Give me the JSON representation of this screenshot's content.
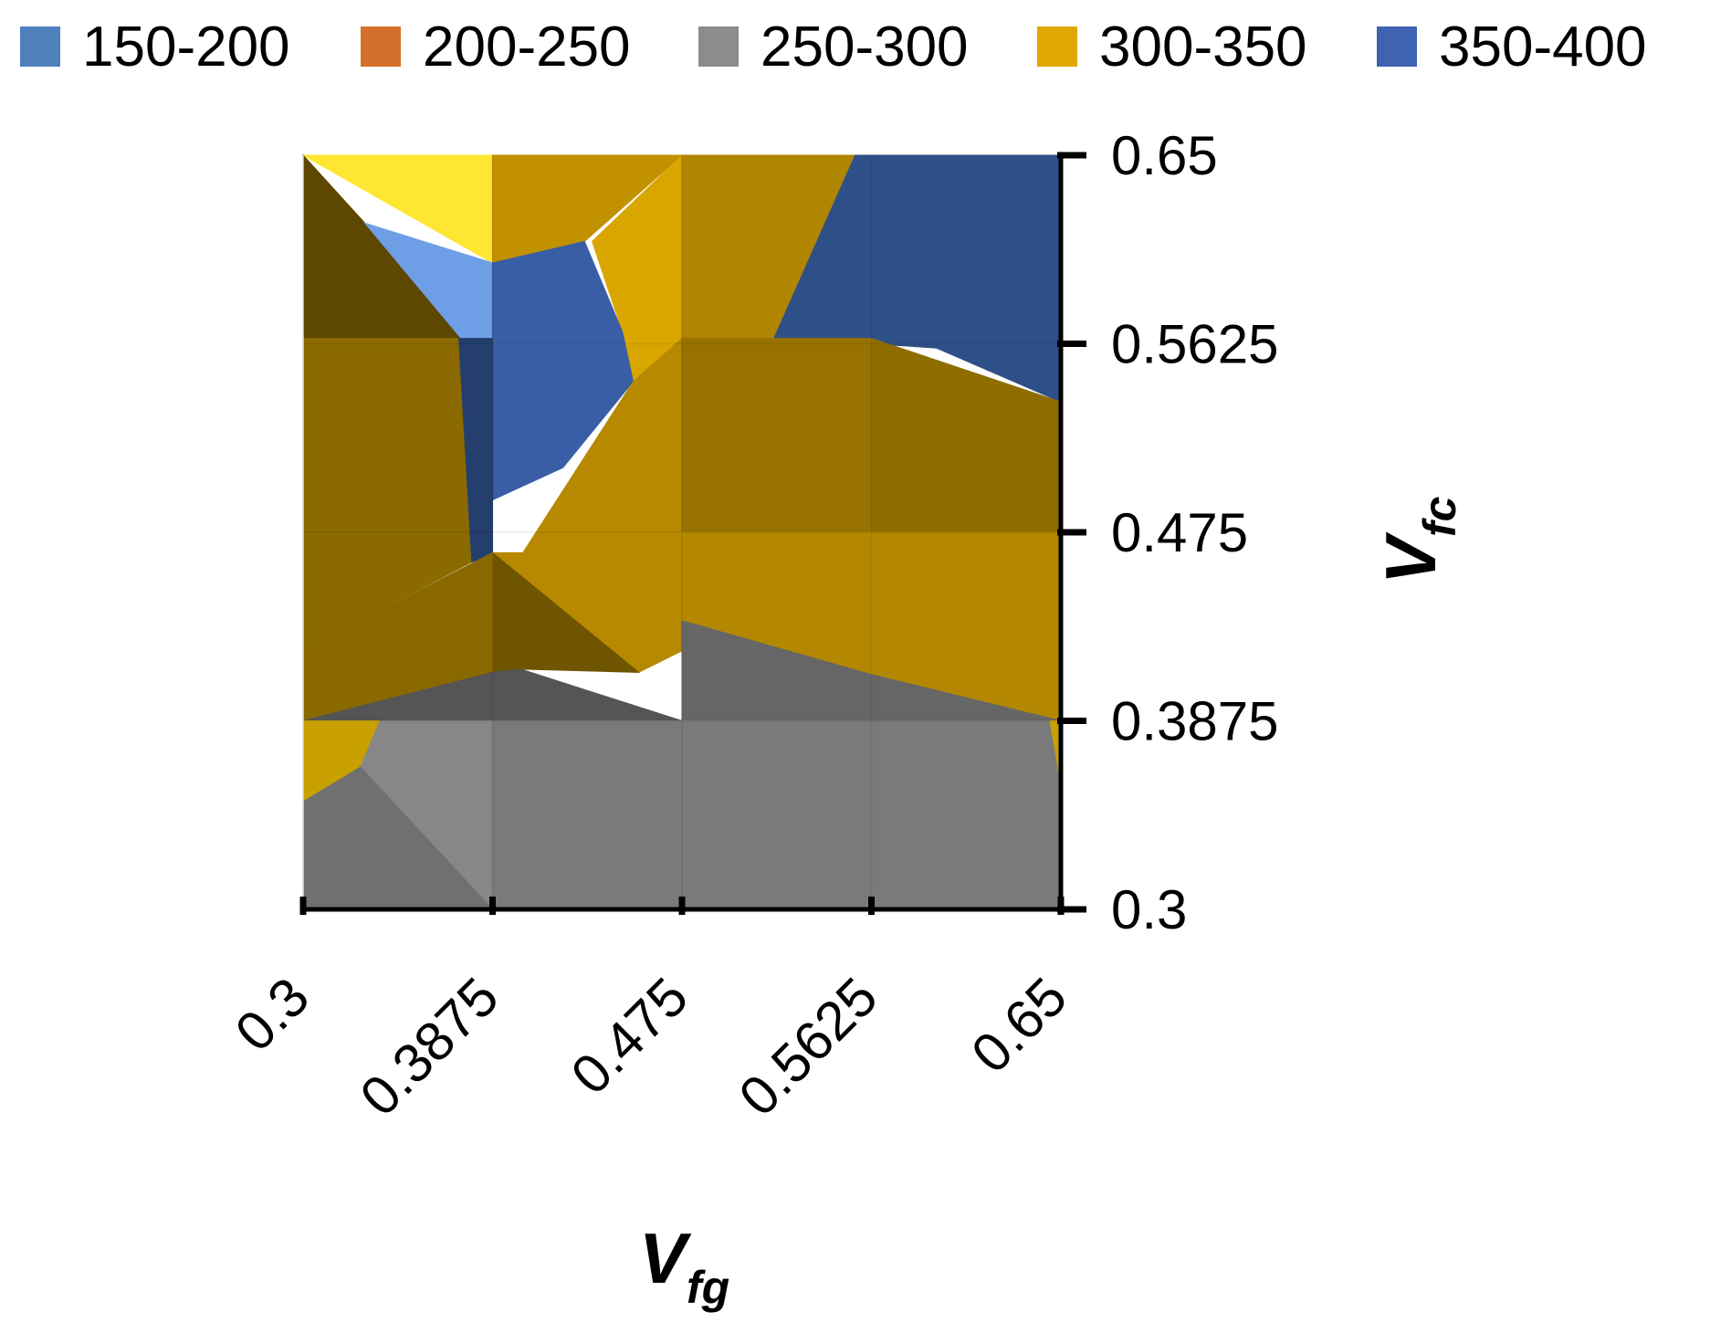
{
  "chart_data": {
    "type": "area",
    "subtype": "3d-surface-contour-top-view",
    "legend_position": "top",
    "bands": [
      {
        "label": "150-200",
        "color": "#4f81bd"
      },
      {
        "label": "200-250",
        "color": "#d4702c"
      },
      {
        "label": "250-300",
        "color": "#8c8c8c"
      },
      {
        "label": "300-350",
        "color": "#e0a800"
      },
      {
        "label": "350-400",
        "color": "#3f62b1"
      }
    ],
    "x_axis": {
      "title_main": "V",
      "title_sub": "fg",
      "ticks": [
        "0.3",
        "0.3875",
        "0.475",
        "0.5625",
        "0.65"
      ],
      "range": [
        0.3,
        0.65
      ]
    },
    "y_axis": {
      "title_main": "V",
      "title_sub": "fc",
      "ticks": [
        "0.3",
        "0.3875",
        "0.475",
        "0.5625",
        "0.65"
      ],
      "range": [
        0.3,
        0.65
      ],
      "side": "right"
    },
    "x_values": [
      0.3,
      0.3875,
      0.475,
      0.5625,
      0.65
    ],
    "y_values": [
      0.3,
      0.3875,
      0.475,
      0.5625,
      0.65
    ],
    "z_band_grid_rows_top_to_bottom": [
      [
        "300-350",
        "300-350",
        "300-350",
        "350-400",
        "350-400"
      ],
      [
        "300-350",
        "350-400",
        "300-350",
        "300-350",
        "350-400"
      ],
      [
        "300-350",
        "350-400",
        "300-350",
        "300-350",
        "300-350"
      ],
      [
        "300-350",
        "300-350",
        "250-300",
        "250-300",
        "300-350"
      ],
      [
        "250-300",
        "250-300",
        "250-300",
        "250-300",
        "250-300"
      ]
    ],
    "regions": [
      {
        "band": "300-350",
        "color": "#ffe633",
        "points": [
          [
            0.3,
            0.65
          ],
          [
            0.3875,
            0.65
          ],
          [
            0.3875,
            0.6
          ]
        ]
      },
      {
        "band": "300-350",
        "color": "#c29100",
        "points": [
          [
            0.3875,
            0.65
          ],
          [
            0.475,
            0.65
          ],
          [
            0.43,
            0.61
          ],
          [
            0.3875,
            0.6
          ]
        ]
      },
      {
        "band": "300-350",
        "color": "#d9a600",
        "points": [
          [
            0.475,
            0.65
          ],
          [
            0.475,
            0.565
          ],
          [
            0.4525,
            0.545
          ],
          [
            0.4475,
            0.568
          ],
          [
            0.4335,
            0.61
          ]
        ]
      },
      {
        "band": "300-350",
        "color": "#b08500",
        "points": [
          [
            0.475,
            0.65
          ],
          [
            0.555,
            0.65
          ],
          [
            0.5175,
            0.565
          ],
          [
            0.475,
            0.565
          ]
        ]
      },
      {
        "band": "350-400",
        "color": "#2e4f87",
        "points": [
          [
            0.555,
            0.65
          ],
          [
            0.65,
            0.65
          ],
          [
            0.65,
            0.5355
          ],
          [
            0.5925,
            0.5605
          ],
          [
            0.578,
            0.5615
          ],
          [
            0.5175,
            0.565
          ]
        ]
      },
      {
        "band": "300-350",
        "color": "#5e4700",
        "points": [
          [
            0.3,
            0.65
          ],
          [
            0.3285,
            0.6185
          ],
          [
            0.373,
            0.565
          ],
          [
            0.3,
            0.565
          ]
        ]
      },
      {
        "band": "150-200",
        "color": "#6e9ee6",
        "points": [
          [
            0.3285,
            0.6185
          ],
          [
            0.3875,
            0.6
          ],
          [
            0.3875,
            0.565
          ],
          [
            0.373,
            0.565
          ]
        ]
      },
      {
        "band": "350-400",
        "color": "#3a5ea5",
        "points": [
          [
            0.3875,
            0.6
          ],
          [
            0.43,
            0.61
          ],
          [
            0.4475,
            0.568
          ],
          [
            0.4525,
            0.545
          ],
          [
            0.42,
            0.505
          ],
          [
            0.3875,
            0.49
          ]
        ]
      },
      {
        "band": "350-400",
        "color": "#243e6e",
        "points": [
          [
            0.3875,
            0.565
          ],
          [
            0.3875,
            0.465
          ],
          [
            0.3775,
            0.461
          ],
          [
            0.3715,
            0.565
          ]
        ]
      },
      {
        "band": "300-350",
        "color": "#8b6a00",
        "points": [
          [
            0.3,
            0.565
          ],
          [
            0.3715,
            0.565
          ],
          [
            0.3775,
            0.461
          ],
          [
            0.3,
            0.42
          ]
        ]
      },
      {
        "band": "300-350",
        "color": "#b78900",
        "points": [
          [
            0.3875,
            0.4655
          ],
          [
            0.4015,
            0.4655
          ],
          [
            0.4525,
            0.545
          ],
          [
            0.475,
            0.565
          ],
          [
            0.475,
            0.42
          ],
          [
            0.455,
            0.41
          ]
        ]
      },
      {
        "band": "300-350",
        "color": "#977200",
        "points": [
          [
            0.475,
            0.565
          ],
          [
            0.5625,
            0.565
          ],
          [
            0.5625,
            0.475
          ],
          [
            0.475,
            0.475
          ]
        ]
      },
      {
        "band": "300-350",
        "color": "#8f6c00",
        "points": [
          [
            0.5625,
            0.565
          ],
          [
            0.65,
            0.5355
          ],
          [
            0.65,
            0.475
          ],
          [
            0.5625,
            0.475
          ]
        ]
      },
      {
        "band": "300-350",
        "color": "#b38800",
        "points": [
          [
            0.475,
            0.475
          ],
          [
            0.65,
            0.475
          ],
          [
            0.65,
            0.3875
          ],
          [
            0.5625,
            0.409
          ],
          [
            0.475,
            0.434
          ]
        ]
      },
      {
        "band": "300-350",
        "color": "#6f5500",
        "points": [
          [
            0.3875,
            0.4655
          ],
          [
            0.455,
            0.41
          ],
          [
            0.4005,
            0.4115
          ],
          [
            0.3875,
            0.41
          ]
        ]
      },
      {
        "band": "300-350",
        "color": "#8a6800",
        "points": [
          [
            0.3,
            0.42
          ],
          [
            0.3875,
            0.4655
          ],
          [
            0.3875,
            0.41
          ],
          [
            0.3,
            0.3875
          ]
        ]
      },
      {
        "band": "250-300",
        "color": "#555555",
        "points": [
          [
            0.3,
            0.3875
          ],
          [
            0.3875,
            0.41
          ],
          [
            0.4005,
            0.4115
          ],
          [
            0.475,
            0.3875
          ]
        ]
      },
      {
        "band": "250-300",
        "color": "#666666",
        "points": [
          [
            0.475,
            0.3875
          ],
          [
            0.475,
            0.434
          ],
          [
            0.5625,
            0.409
          ],
          [
            0.65,
            0.3875
          ]
        ]
      },
      {
        "band": "300-350",
        "color": "#c8a000",
        "points": [
          [
            0.3,
            0.3875
          ],
          [
            0.3355,
            0.3875
          ],
          [
            0.3265,
            0.366
          ],
          [
            0.3,
            0.35
          ]
        ]
      },
      {
        "band": "250-300",
        "color": "#878787",
        "points": [
          [
            0.3355,
            0.3875
          ],
          [
            0.3875,
            0.3875
          ],
          [
            0.3875,
            0.3
          ],
          [
            0.3265,
            0.366
          ]
        ]
      },
      {
        "band": "250-300",
        "color": "#707070",
        "points": [
          [
            0.3,
            0.35
          ],
          [
            0.3265,
            0.366
          ],
          [
            0.3875,
            0.3
          ],
          [
            0.3,
            0.3
          ]
        ]
      },
      {
        "band": "250-300",
        "color": "#7a7a7a",
        "points": [
          [
            0.3875,
            0.3875
          ],
          [
            0.65,
            0.3875
          ],
          [
            0.65,
            0.3
          ],
          [
            0.3875,
            0.3
          ]
        ]
      },
      {
        "band": "300-350",
        "color": "#c8a000",
        "points": [
          [
            0.645,
            0.3875
          ],
          [
            0.65,
            0.3875
          ],
          [
            0.65,
            0.358
          ]
        ]
      }
    ]
  }
}
